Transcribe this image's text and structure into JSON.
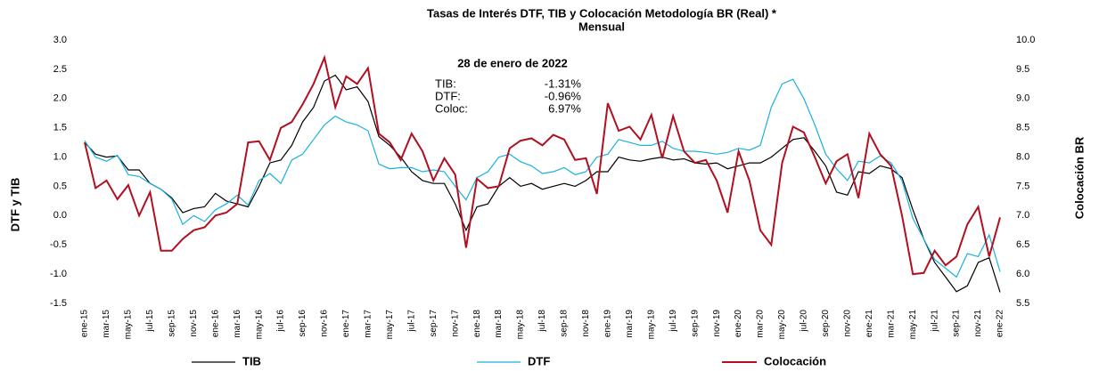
{
  "chart_data": {
    "type": "line",
    "title": "Tasas de Interés  DTF,  TIB  y Colocación Metodología BR  (Real) *",
    "subtitle": "Mensual",
    "y_label": "DTF y TIB",
    "y2_label": "Colocación BR",
    "annotations": {
      "date": "28 de enero de 2022",
      "rows": [
        [
          "TIB:",
          "-1.31%"
        ],
        [
          "DTF:",
          "-0.96%"
        ],
        [
          "Coloc:",
          "6.97%"
        ]
      ]
    },
    "categories": [
      "ene-15",
      null,
      "mar-15",
      null,
      "may-15",
      null,
      "jul-15",
      null,
      "sep-15",
      null,
      "nov-15",
      null,
      "ene-16",
      null,
      "mar-16",
      null,
      "may-16",
      null,
      "jul-16",
      null,
      "sep-16",
      null,
      "nov-16",
      null,
      "ene-17",
      null,
      "mar-17",
      null,
      "may-17",
      null,
      "jul-17",
      null,
      "sep-17",
      null,
      "nov-17",
      null,
      "ene-18",
      null,
      "mar-18",
      null,
      "may-18",
      null,
      "jul-18",
      null,
      "sep-18",
      null,
      "nov-18",
      null,
      "ene-19",
      null,
      "mar-19",
      null,
      "may-19",
      null,
      "jul-19",
      null,
      "sep-19",
      null,
      "nov-19",
      null,
      "ene-20",
      null,
      "mar-20",
      null,
      "may-20",
      null,
      "jul-20",
      null,
      "sep-20",
      null,
      "nov-20",
      null,
      "ene-21",
      null,
      "mar-21",
      null,
      "may-21",
      null,
      "jul-21",
      null,
      "sep-21",
      null,
      "nov-21",
      null,
      "ene-22"
    ],
    "series": [
      {
        "name": "TIB",
        "color": "#000000",
        "values": [
          1.25,
          1.05,
          1.0,
          1.02,
          0.78,
          0.78,
          0.55,
          0.45,
          0.3,
          0.05,
          0.12,
          0.15,
          0.38,
          0.25,
          0.2,
          0.15,
          0.5,
          0.9,
          0.95,
          1.2,
          1.6,
          1.85,
          2.3,
          2.4,
          2.15,
          2.2,
          1.95,
          1.35,
          1.2,
          1.0,
          0.75,
          0.6,
          0.55,
          0.55,
          0.2,
          -0.25,
          0.15,
          0.2,
          0.5,
          0.65,
          0.5,
          0.55,
          0.45,
          0.5,
          0.55,
          0.5,
          0.6,
          0.75,
          0.75,
          1.0,
          0.95,
          0.93,
          0.97,
          1.0,
          0.95,
          0.97,
          0.9,
          0.88,
          0.9,
          0.8,
          0.85,
          0.9,
          0.9,
          1.0,
          1.15,
          1.3,
          1.33,
          1.1,
          0.85,
          0.4,
          0.35,
          0.75,
          0.72,
          0.85,
          0.8,
          0.65,
          0.1,
          -0.4,
          -0.8,
          -1.05,
          -1.3,
          -1.2,
          -0.8,
          -0.72,
          -1.31
        ]
      },
      {
        "name": "DTF",
        "color": "#1ab0e0",
        "values": [
          1.28,
          1.0,
          0.93,
          1.03,
          0.7,
          0.67,
          0.55,
          0.45,
          0.28,
          -0.15,
          0.0,
          -0.1,
          0.1,
          0.2,
          0.35,
          0.18,
          0.6,
          0.72,
          0.55,
          0.95,
          1.05,
          1.3,
          1.55,
          1.7,
          1.6,
          1.55,
          1.45,
          0.88,
          0.8,
          0.82,
          0.82,
          0.75,
          0.78,
          0.75,
          0.5,
          0.27,
          0.65,
          0.75,
          1.0,
          1.05,
          0.92,
          0.85,
          0.72,
          0.75,
          0.82,
          0.7,
          0.75,
          1.0,
          1.05,
          1.3,
          1.25,
          1.2,
          1.2,
          1.27,
          1.15,
          1.1,
          1.1,
          1.08,
          1.05,
          1.08,
          1.15,
          1.12,
          1.2,
          1.85,
          2.25,
          2.33,
          2.0,
          1.55,
          1.05,
          0.8,
          0.6,
          0.93,
          0.9,
          1.02,
          0.9,
          0.6,
          -0.05,
          -0.4,
          -0.75,
          -0.9,
          -1.05,
          -0.65,
          -0.7,
          -0.33,
          -0.96
        ]
      },
      {
        "name": "Colocación",
        "color": "#b01020",
        "axis": "y2",
        "values": [
          8.25,
          7.47,
          7.6,
          7.28,
          7.52,
          7.0,
          7.4,
          6.4,
          6.4,
          6.6,
          6.75,
          6.8,
          7.0,
          7.05,
          7.2,
          8.25,
          8.27,
          7.95,
          8.5,
          8.6,
          8.9,
          9.25,
          9.7,
          8.85,
          9.38,
          9.25,
          9.52,
          8.4,
          8.25,
          7.95,
          8.4,
          8.1,
          7.6,
          7.98,
          7.7,
          6.45,
          7.63,
          7.47,
          7.5,
          8.15,
          8.28,
          8.32,
          8.2,
          8.38,
          8.3,
          7.95,
          7.98,
          7.37,
          8.92,
          8.45,
          8.52,
          8.3,
          8.72,
          7.98,
          8.7,
          8.1,
          7.9,
          7.95,
          7.6,
          7.05,
          8.1,
          7.6,
          6.75,
          6.5,
          7.9,
          8.52,
          8.42,
          8.0,
          7.55,
          7.93,
          8.05,
          7.3,
          8.4,
          8.05,
          7.85,
          7.0,
          6.0,
          6.02,
          6.4,
          6.15,
          6.3,
          6.85,
          7.15,
          6.3,
          6.97
        ]
      }
    ],
    "ylim": [
      -1.5,
      3.0
    ],
    "yticks": [
      {
        "value": 3,
        "label": "3.0"
      },
      {
        "value": 2.5,
        "label": "2.5"
      },
      {
        "value": 2,
        "label": "2.0"
      },
      {
        "value": 1.5,
        "label": "1.5"
      },
      {
        "value": 1,
        "label": "1.0"
      },
      {
        "value": 0.5,
        "label": "0.5"
      },
      {
        "value": 0,
        "label": "0.0"
      },
      {
        "value": -0.5,
        "label": "-0.5"
      },
      {
        "value": -1,
        "label": "-1.0"
      },
      {
        "value": -1.5,
        "label": "-1.5"
      }
    ],
    "y2lim": [
      5.5,
      10.0
    ],
    "y2ticks": [
      {
        "value": 10,
        "label": "10.0"
      },
      {
        "value": 9.5,
        "label": "9.5"
      },
      {
        "value": 9,
        "label": "9.0"
      },
      {
        "value": 8.5,
        "label": "8.5"
      },
      {
        "value": 8,
        "label": "8.0"
      },
      {
        "value": 7.5,
        "label": "7.5"
      },
      {
        "value": 7,
        "label": "7.0"
      },
      {
        "value": 6.5,
        "label": "6.5"
      },
      {
        "value": 6,
        "label": "6.0"
      },
      {
        "value": 5.5,
        "label": "5.5"
      }
    ],
    "legend": "bottom"
  }
}
